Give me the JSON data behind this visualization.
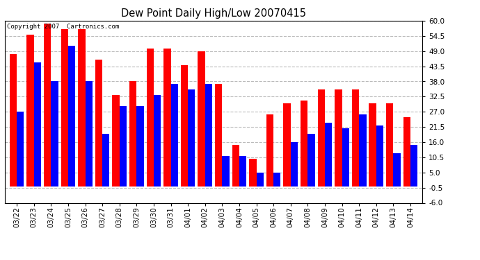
{
  "title": "Dew Point Daily High/Low 20070415",
  "copyright": "Copyright 2007  Cartronics.com",
  "dates": [
    "03/22",
    "03/23",
    "03/24",
    "03/25",
    "03/26",
    "03/27",
    "03/28",
    "03/29",
    "03/30",
    "03/31",
    "04/01",
    "04/02",
    "04/03",
    "04/04",
    "04/05",
    "04/06",
    "04/07",
    "04/08",
    "04/09",
    "04/10",
    "04/11",
    "04/12",
    "04/13",
    "04/14"
  ],
  "highs": [
    48,
    55,
    59,
    57,
    57,
    46,
    33,
    38,
    50,
    50,
    44,
    49,
    37,
    15,
    10,
    26,
    30,
    31,
    35,
    35,
    35,
    30,
    30,
    25
  ],
  "lows": [
    27,
    45,
    38,
    51,
    38,
    19,
    29,
    29,
    33,
    37,
    35,
    37,
    11,
    11,
    5,
    5,
    16,
    19,
    23,
    21,
    26,
    22,
    12,
    15
  ],
  "high_color": "#ff0000",
  "low_color": "#0000ff",
  "background_color": "#ffffff",
  "grid_color": "#bbbbbb",
  "yticks": [
    -6.0,
    -0.5,
    5.0,
    10.5,
    16.0,
    21.5,
    27.0,
    32.5,
    38.0,
    43.5,
    49.0,
    54.5,
    60.0
  ],
  "ymin": -6.0,
  "ymax": 60.0,
  "bar_width": 0.42
}
